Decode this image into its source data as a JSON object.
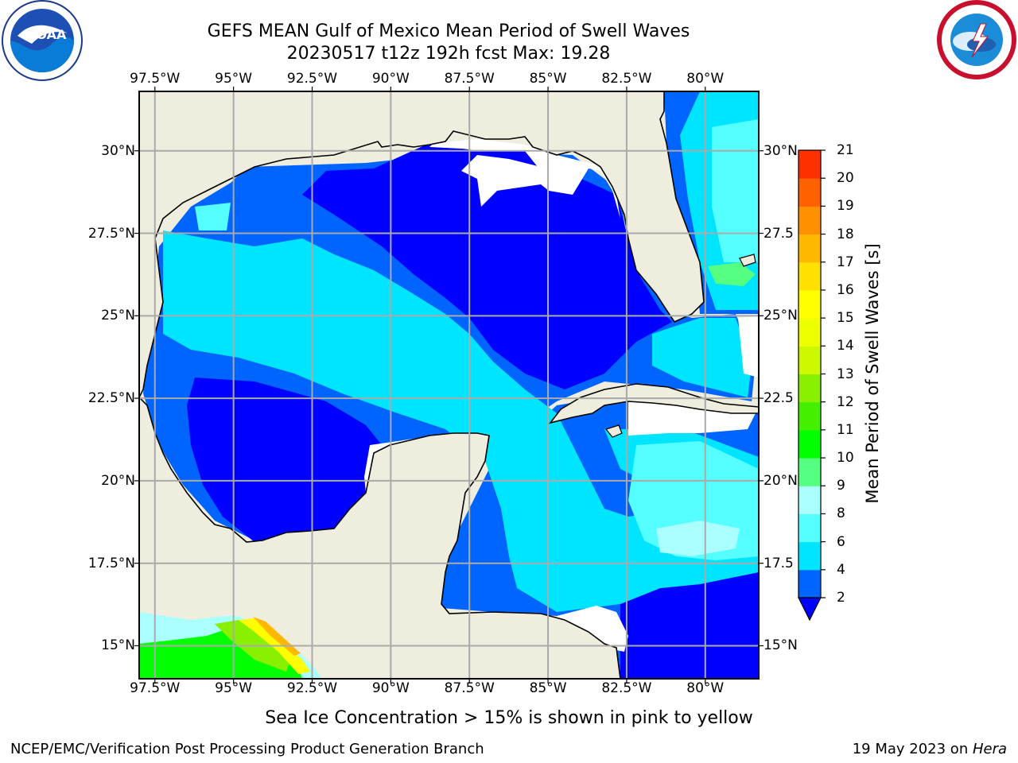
{
  "title": {
    "line1": "GEFS MEAN Gulf of Mexico Mean Period of Swell Waves",
    "line2": "20230517 t12z 192h fcst   Max: 19.28"
  },
  "logos": {
    "noaa": {
      "text": "NOAA",
      "icon": "noaa-logo-icon"
    },
    "nws": {
      "icon": "nws-logo-icon"
    }
  },
  "map": {
    "lon_labels": [
      "97.5°W",
      "95°W",
      "92.5°W",
      "90°W",
      "87.5°W",
      "85°W",
      "82.5°W",
      "80°W"
    ],
    "lon_values": [
      -97.5,
      -95,
      -92.5,
      -90,
      -87.5,
      -85,
      -82.5,
      -80
    ],
    "lat_labels_left": [
      "30°N",
      "27.5°N",
      "25°N",
      "22.5°N",
      "20°N",
      "17.5°N",
      "15°N"
    ],
    "lat_labels_right": [
      "30°N",
      "27.5",
      "25°N",
      "22.5",
      "20°N",
      "17.5",
      "15°N"
    ],
    "lat_values": [
      30,
      27.5,
      25,
      22.5,
      20,
      17.5,
      15
    ],
    "extent": {
      "lon_min": -98,
      "lon_max": -78.3,
      "lat_min": 14,
      "lat_max": 31.8
    },
    "colors": {
      "land": "#efedde",
      "ocean_nodata": "#ffffff",
      "grid": "#aaaaaa",
      "coast": "#000000"
    }
  },
  "colorbar": {
    "title": "Mean Period of Swell Waves [s]",
    "ticks": [
      "2",
      "4",
      "6",
      "8",
      "9",
      "10",
      "11",
      "12",
      "13",
      "14",
      "15",
      "16",
      "17",
      "18",
      "19",
      "20",
      "21"
    ],
    "bounds": [
      2,
      4,
      6,
      8,
      9,
      10,
      11,
      12,
      13,
      14,
      15,
      16,
      17,
      18,
      19,
      20,
      21
    ],
    "colors": [
      "#0064ff",
      "#00e5ff",
      "#55ffff",
      "#aaffff",
      "#55ff7f",
      "#00ff00",
      "#44f000",
      "#88f000",
      "#ccf800",
      "#eeff00",
      "#ffff00",
      "#ffe000",
      "#ffb800",
      "#ff9000",
      "#ff6000",
      "#ff3000"
    ],
    "under_color": "#0000ff"
  },
  "note": "Sea Ice Concentration > 15% is shown in pink to yellow",
  "footer": {
    "left": "NCEP/EMC/Verification Post Processing Product Generation Branch",
    "right_prefix": "19 May 2023 on ",
    "right_machine": "Hera"
  }
}
